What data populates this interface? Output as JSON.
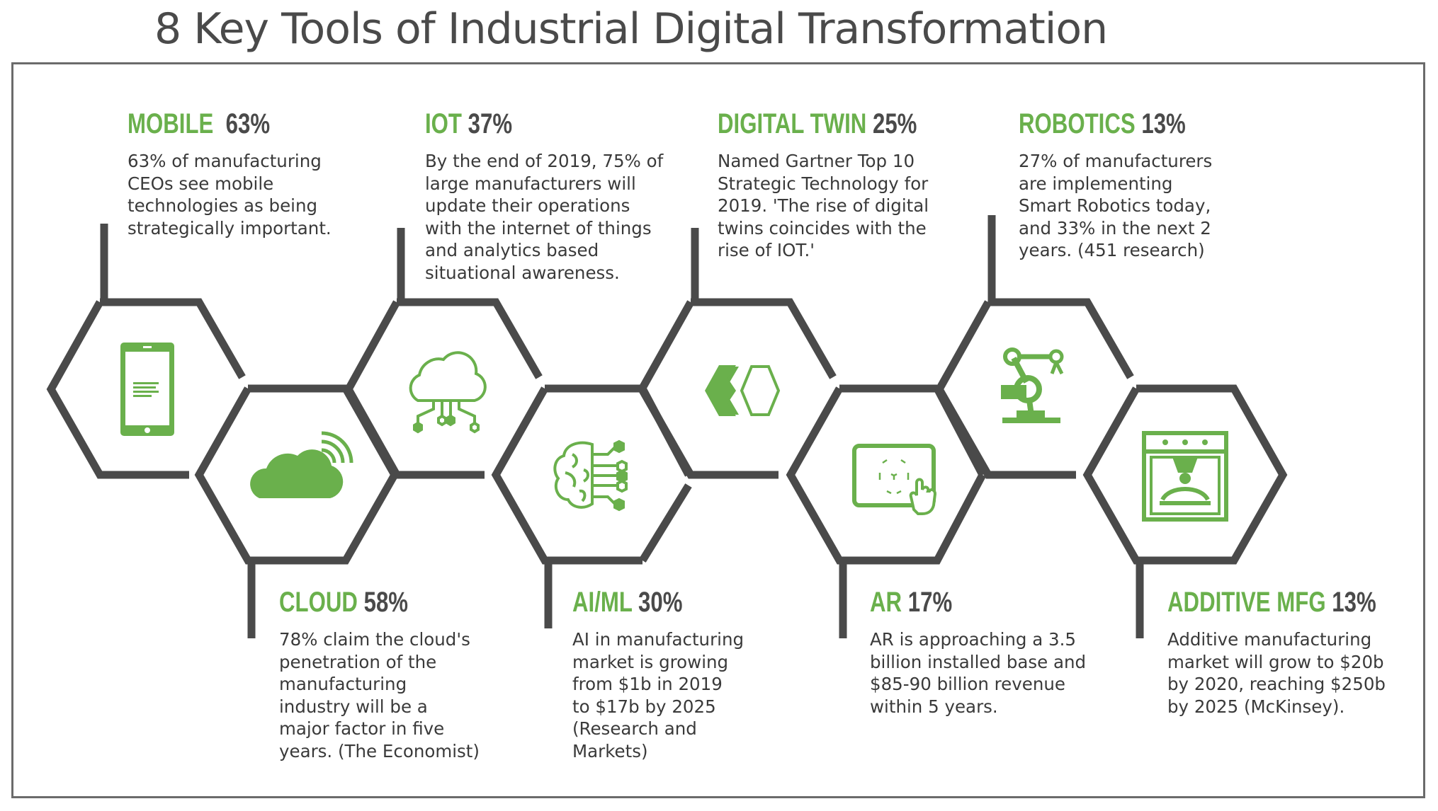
{
  "title": "8 Key Tools of Industrial Digital Transformation",
  "colors": {
    "green": "#6ab04c",
    "dark": "#4a4a4a",
    "frame": "#6b6b6b"
  },
  "tools": [
    {
      "name": "MOBILE",
      "percent": "63%",
      "icon": "tablet-icon",
      "description": "63% of manufacturing\nCEOs see mobile\ntechnologies as being\nstrategically important."
    },
    {
      "name": "CLOUD",
      "percent": "58%",
      "icon": "cloud-wifi-icon",
      "description": "78% claim the cloud's\npenetration of the\nmanufacturing\nindustry will be a\nmajor factor in five\nyears. (The Economist)"
    },
    {
      "name": "IOT",
      "percent": "37%",
      "icon": "cloud-network-icon",
      "description": "By the end of 2019, 75% of\nlarge manufacturers will\nupdate their operations\nwith the internet of things\nand analytics based\nsituational awareness."
    },
    {
      "name": "AI/ML",
      "percent": "30%",
      "icon": "brain-circuit-icon",
      "description": "AI in manufacturing\nmarket is growing\nfrom $1b in 2019\nto $17b by 2025\n(Research and\nMarkets)"
    },
    {
      "name": "DIGITAL TWIN",
      "percent": "25%",
      "icon": "twin-hexagons-icon",
      "description": "Named Gartner Top 10\nStrategic Technology for\n2019. 'The rise of digital\ntwins coincides with the\nrise of IOT.'"
    },
    {
      "name": "AR",
      "percent": "17%",
      "icon": "ar-tablet-icon",
      "description": "AR is approaching a 3.5\nbillion installed base and\n$85-90 billion revenue\nwithin 5 years."
    },
    {
      "name": "ROBOTICS",
      "percent": "13%",
      "icon": "robot-arm-icon",
      "description": "27% of manufacturers\nare implementing\nSmart Robotics today,\nand 33% in the next 2\nyears. (451 research)"
    },
    {
      "name": "ADDITIVE MFG",
      "percent": "13%",
      "icon": "3d-printer-icon",
      "description": "Additive manufacturing\nmarket will grow to $20b\nby 2020, reaching $250b\nby 2025 (McKinsey)."
    }
  ]
}
